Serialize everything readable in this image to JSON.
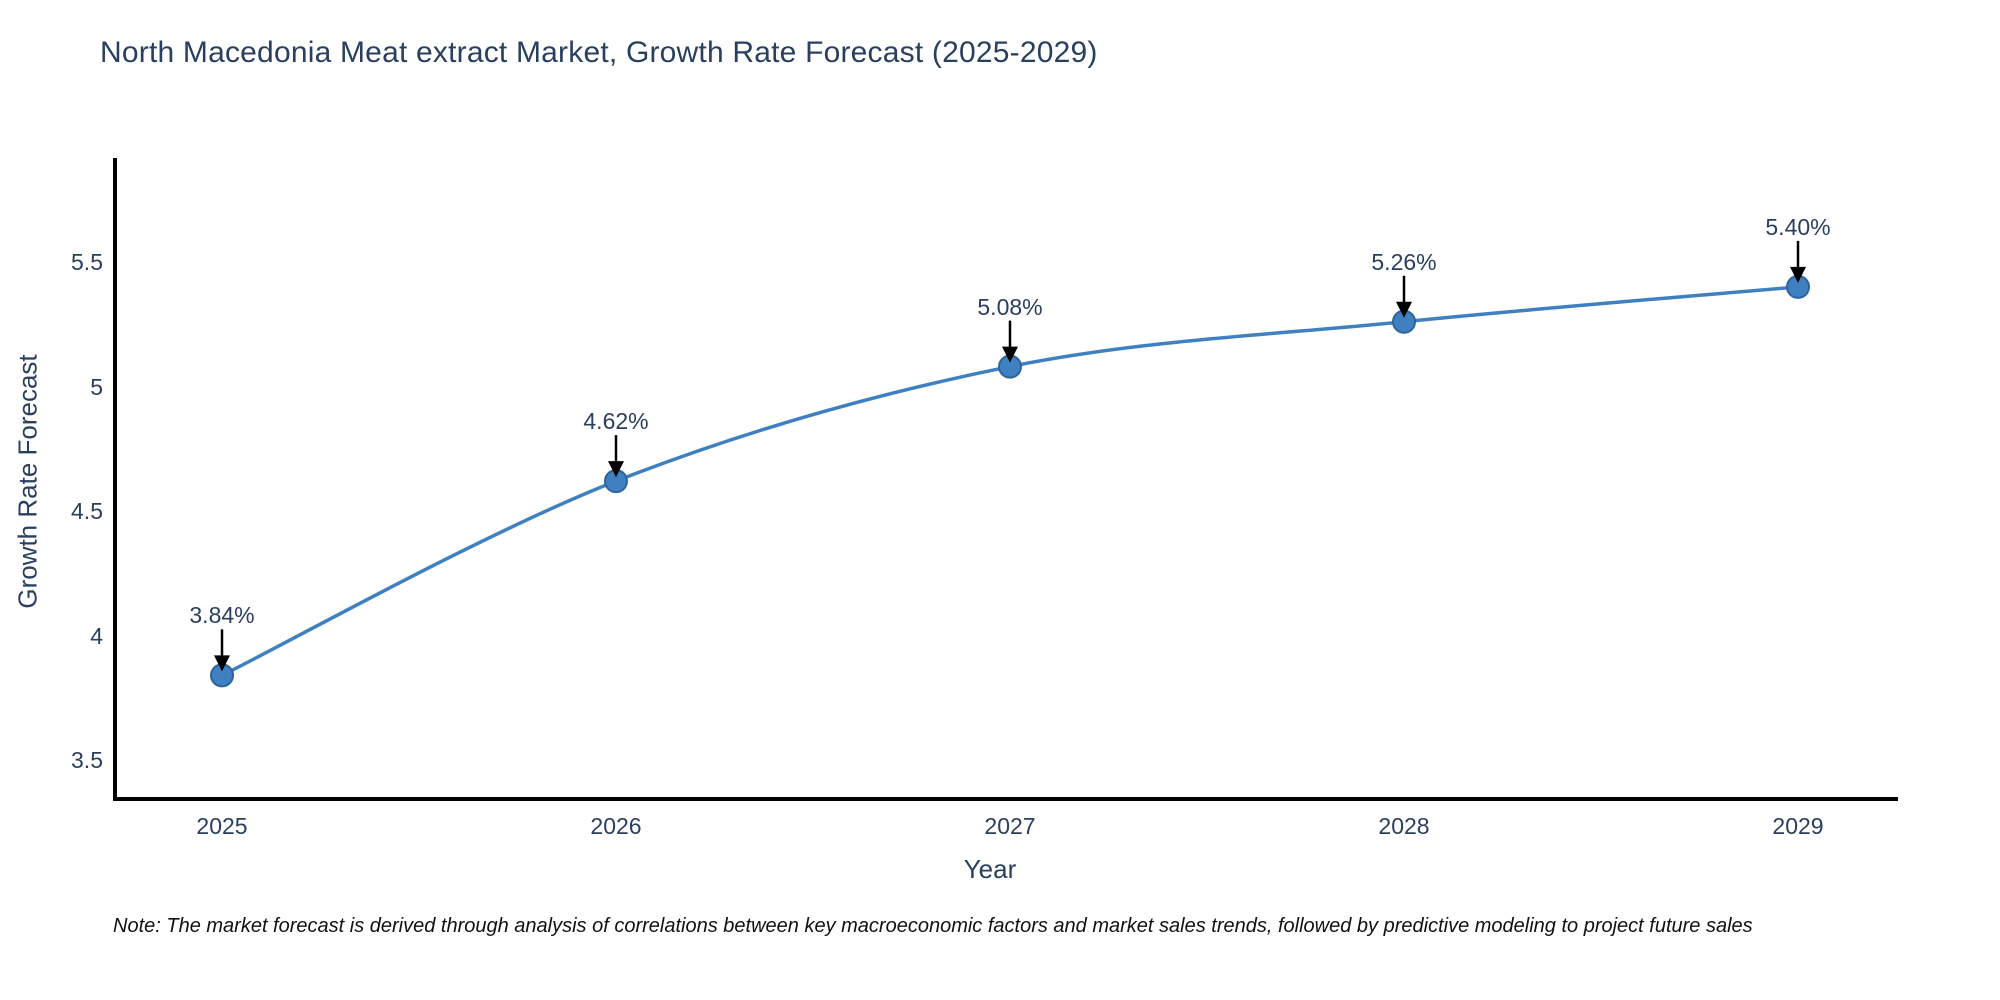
{
  "title": "North Macedonia Meat extract Market, Growth Rate Forecast (2025-2029)",
  "note": "Note: The market forecast is derived through analysis of correlations between key macroeconomic factors and market sales trends, followed by predictive modeling to project future sales",
  "chart_data": {
    "type": "line",
    "title": "North Macedonia Meat extract Market, Growth Rate Forecast (2025-2029)",
    "xlabel": "Year",
    "ylabel": "Growth Rate Forecast",
    "x": [
      2025,
      2026,
      2027,
      2028,
      2029
    ],
    "y": [
      3.84,
      4.62,
      5.08,
      5.26,
      5.4
    ],
    "point_labels": [
      "3.84%",
      "4.62%",
      "5.08%",
      "5.26%",
      "5.40%"
    ],
    "xtick_labels": [
      "2025",
      "2026",
      "2027",
      "2028",
      "2029"
    ],
    "ytick_values": [
      3.5,
      4,
      4.5,
      5,
      5.5
    ],
    "ytick_labels": [
      "3.5",
      "4",
      "4.5",
      "5",
      "5.5"
    ],
    "ylim": [
      3.34,
      5.92
    ],
    "xlim": [
      2024.73,
      2029.25
    ],
    "grid": false,
    "legend_position": "none",
    "line_shape": "spline",
    "line_color": "#3f80c0",
    "marker_color": "#3f80c0",
    "marker_edge_color": "#2e639c",
    "axis_line_color": "#000000",
    "annotation_arrow_color": "#000000",
    "text_color": "#2a3f5f"
  }
}
